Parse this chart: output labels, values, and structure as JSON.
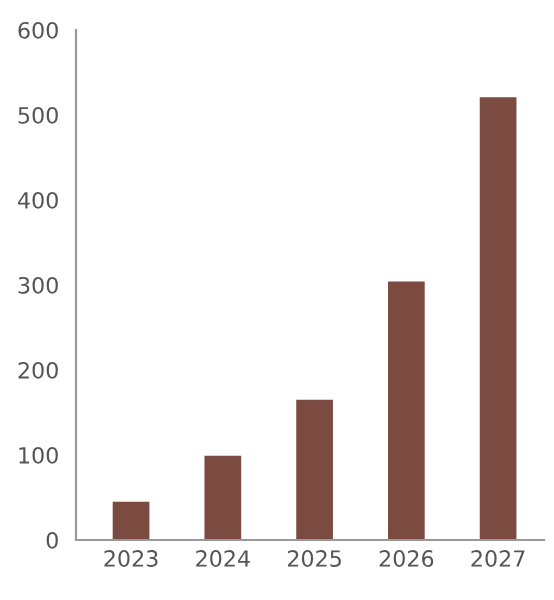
{
  "chart_data": {
    "type": "bar",
    "categories": [
      "2023",
      "2024",
      "2025",
      "2026",
      "2027"
    ],
    "values": [
      45,
      99,
      165,
      304,
      521
    ],
    "color": "#7b4a40",
    "ylim": [
      0,
      600
    ],
    "yticks": [
      0,
      100,
      200,
      300,
      400,
      500,
      600
    ],
    "grid": false
  }
}
